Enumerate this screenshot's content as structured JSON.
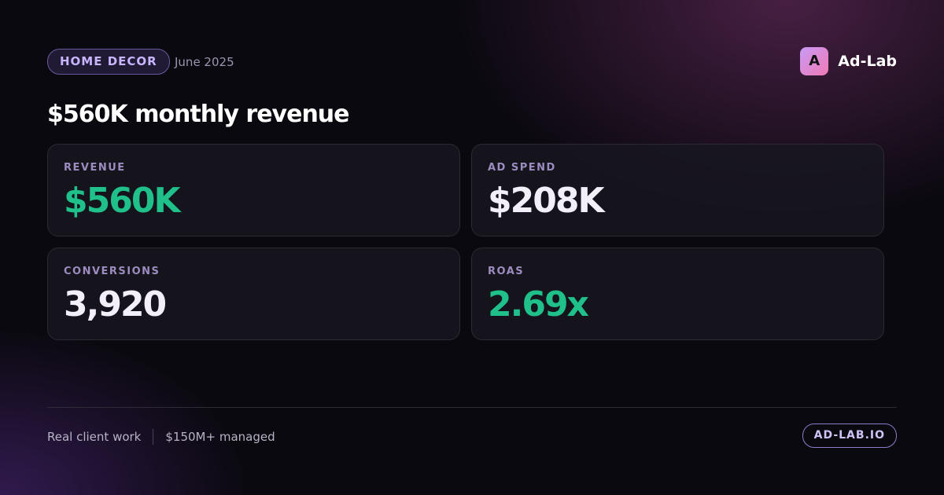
{
  "header": {
    "tag": "HOME DECOR",
    "date": "June 2025",
    "brand_icon": "A",
    "brand": "Ad-Lab"
  },
  "title": "$560K monthly revenue",
  "cards": [
    {
      "label": "REVENUE",
      "value": "$560K"
    },
    {
      "label": "AD SPEND",
      "value": "$208K"
    },
    {
      "label": "CONVERSIONS",
      "value": "3,920"
    },
    {
      "label": "ROAS",
      "value": "2.69x"
    }
  ],
  "footer": {
    "left": "Real client work",
    "right": "$150M+ managed",
    "link": "AD-LAB.IO"
  }
}
